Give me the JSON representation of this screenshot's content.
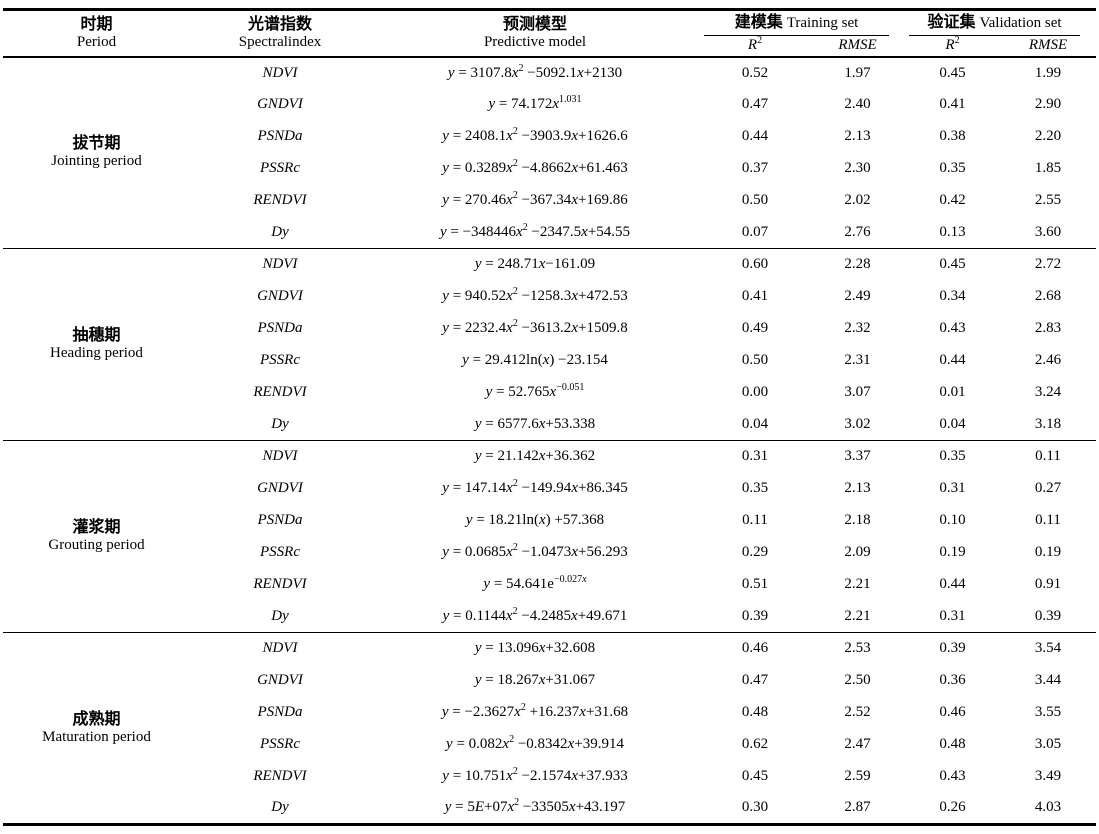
{
  "page": {
    "background": "#ffffff",
    "text_color": "#000000"
  },
  "table": {
    "header": {
      "period_zh": "时期",
      "period_en": "Period",
      "index_zh": "光谱指数",
      "index_en": "Spectralindex",
      "model_zh": "预测模型",
      "model_en": "Predictive model",
      "training_zh": "建模集",
      "training_en": "Training set",
      "validation_zh": "验证集",
      "validation_en": "Validation set",
      "r2": "*R*^{2}",
      "rmse": "*RMSE*"
    },
    "groups": [
      {
        "period_zh": "拔节期",
        "period_en": "Jointing period",
        "rows": [
          {
            "index": "NDVI",
            "model": "*y* = 3107.8*x*^{2} −5092.1*x*+2130",
            "train_r2": "0.52",
            "train_rmse": "1.97",
            "val_r2": "0.45",
            "val_rmse": "1.99"
          },
          {
            "index": "GNDVI",
            "model": "*y* = 74.172*x*^{1.031}",
            "train_r2": "0.47",
            "train_rmse": "2.40",
            "val_r2": "0.41",
            "val_rmse": "2.90"
          },
          {
            "index": "PSNDa",
            "model": "*y* = 2408.1*x*^{2} −3903.9*x*+1626.6",
            "train_r2": "0.44",
            "train_rmse": "2.13",
            "val_r2": "0.38",
            "val_rmse": "2.20"
          },
          {
            "index": "PSSRc",
            "model": "*y* = 0.3289*x*^{2} −4.8662*x*+61.463",
            "train_r2": "0.37",
            "train_rmse": "2.30",
            "val_r2": "0.35",
            "val_rmse": "1.85"
          },
          {
            "index": "RENDVI",
            "model": "*y* = 270.46*x*^{2} −367.34*x*+169.86",
            "train_r2": "0.50",
            "train_rmse": "2.02",
            "val_r2": "0.42",
            "val_rmse": "2.55"
          },
          {
            "index": "Dy",
            "model": "*y* = −348446*x*^{2} −2347.5*x*+54.55",
            "train_r2": "0.07",
            "train_rmse": "2.76",
            "val_r2": "0.13",
            "val_rmse": "3.60"
          }
        ]
      },
      {
        "period_zh": "抽穗期",
        "period_en": "Heading period",
        "rows": [
          {
            "index": "NDVI",
            "model": "*y* = 248.71*x*−161.09",
            "train_r2": "0.60",
            "train_rmse": "2.28",
            "val_r2": "0.45",
            "val_rmse": "2.72"
          },
          {
            "index": "GNDVI",
            "model": "*y* = 940.52*x*^{2} −1258.3*x*+472.53",
            "train_r2": "0.41",
            "train_rmse": "2.49",
            "val_r2": "0.34",
            "val_rmse": "2.68"
          },
          {
            "index": "PSNDa",
            "model": "*y* = 2232.4*x*^{2} −3613.2*x*+1509.8",
            "train_r2": "0.49",
            "train_rmse": "2.32",
            "val_r2": "0.43",
            "val_rmse": "2.83"
          },
          {
            "index": "PSSRc",
            "model": "*y* = 29.412ln(*x*) −23.154",
            "train_r2": "0.50",
            "train_rmse": "2.31",
            "val_r2": "0.44",
            "val_rmse": "2.46"
          },
          {
            "index": "RENDVI",
            "model": "*y* = 52.765*x*^{−0.051}",
            "train_r2": "0.00",
            "train_rmse": "3.07",
            "val_r2": "0.01",
            "val_rmse": "3.24"
          },
          {
            "index": "Dy",
            "model": "*y* = 6577.6*x*+53.338",
            "train_r2": "0.04",
            "train_rmse": "3.02",
            "val_r2": "0.04",
            "val_rmse": "3.18"
          }
        ]
      },
      {
        "period_zh": "灌浆期",
        "period_en": "Grouting period",
        "rows": [
          {
            "index": "NDVI",
            "model": "*y* = 21.142*x*+36.362",
            "train_r2": "0.31",
            "train_rmse": "3.37",
            "val_r2": "0.35",
            "val_rmse": "0.11"
          },
          {
            "index": "GNDVI",
            "model": "*y* = 147.14*x*^{2} −149.94*x*+86.345",
            "train_r2": "0.35",
            "train_rmse": "2.13",
            "val_r2": "0.31",
            "val_rmse": "0.27"
          },
          {
            "index": "PSNDa",
            "model": "*y* = 18.21ln(*x*) +57.368",
            "train_r2": "0.11",
            "train_rmse": "2.18",
            "val_r2": "0.10",
            "val_rmse": "0.11"
          },
          {
            "index": "PSSRc",
            "model": "*y* = 0.0685*x*^{2} −1.0473*x*+56.293",
            "train_r2": "0.29",
            "train_rmse": "2.09",
            "val_r2": "0.19",
            "val_rmse": "0.19"
          },
          {
            "index": "RENDVI",
            "model": "*y* = 54.641e^{−0.027*x*}",
            "train_r2": "0.51",
            "train_rmse": "2.21",
            "val_r2": "0.44",
            "val_rmse": "0.91"
          },
          {
            "index": "Dy",
            "model": "*y* = 0.1144*x*^{2} −4.2485*x*+49.671",
            "train_r2": "0.39",
            "train_rmse": "2.21",
            "val_r2": "0.31",
            "val_rmse": "0.39"
          }
        ]
      },
      {
        "period_zh": "成熟期",
        "period_en": "Maturation period",
        "rows": [
          {
            "index": "NDVI",
            "model": "*y* = 13.096*x*+32.608",
            "train_r2": "0.46",
            "train_rmse": "2.53",
            "val_r2": "0.39",
            "val_rmse": "3.54"
          },
          {
            "index": "GNDVI",
            "model": "*y* = 18.267*x*+31.067",
            "train_r2": "0.47",
            "train_rmse": "2.50",
            "val_r2": "0.36",
            "val_rmse": "3.44"
          },
          {
            "index": "PSNDa",
            "model": "*y* = −2.3627*x*^{2} +16.237*x*+31.68",
            "train_r2": "0.48",
            "train_rmse": "2.52",
            "val_r2": "0.46",
            "val_rmse": "3.55"
          },
          {
            "index": "PSSRc",
            "model": "*y* = 0.082*x*^{2} −0.8342*x*+39.914",
            "train_r2": "0.62",
            "train_rmse": "2.47",
            "val_r2": "0.48",
            "val_rmse": "3.05"
          },
          {
            "index": "RENDVI",
            "model": "*y* = 10.751*x*^{2} −2.1574*x*+37.933",
            "train_r2": "0.45",
            "train_rmse": "2.59",
            "val_r2": "0.43",
            "val_rmse": "3.49"
          },
          {
            "index": "Dy",
            "model": "*y* = 5*E*+07*x*^{2} −33505*x*+43.197",
            "train_r2": "0.30",
            "train_rmse": "2.87",
            "val_r2": "0.26",
            "val_rmse": "4.03"
          }
        ]
      }
    ]
  }
}
